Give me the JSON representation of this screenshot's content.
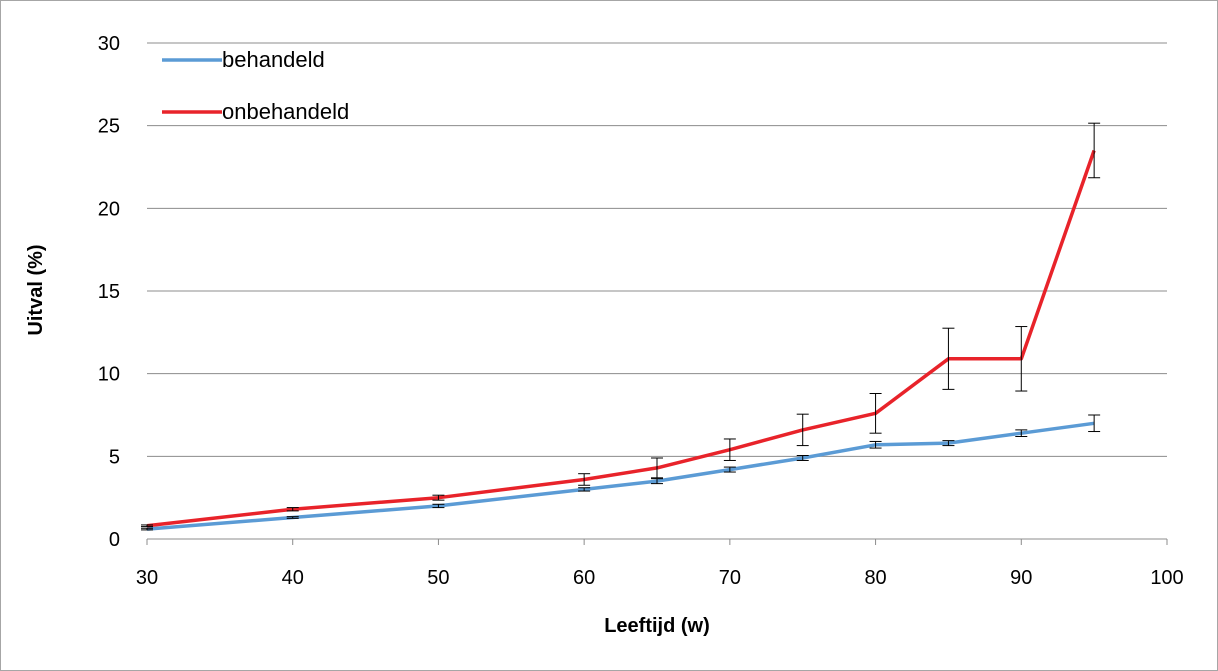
{
  "chart_data": {
    "type": "line",
    "xlabel": "Leeftijd (w)",
    "ylabel": "Uitval (%)",
    "xlim": [
      30,
      100
    ],
    "ylim": [
      0,
      30
    ],
    "x_ticks": [
      30,
      40,
      50,
      60,
      70,
      80,
      90,
      100
    ],
    "y_ticks": [
      0,
      5,
      10,
      15,
      20,
      25,
      30
    ],
    "grid": "horizontal",
    "legend_position": "top-left",
    "series": [
      {
        "name": "behandeld",
        "color": "#5b9bd5",
        "x": [
          30,
          40,
          50,
          60,
          65,
          70,
          75,
          80,
          85,
          90,
          95
        ],
        "y": [
          0.6,
          1.3,
          2.0,
          3.0,
          3.5,
          4.2,
          4.9,
          5.7,
          5.8,
          6.4,
          7.0
        ],
        "error": [
          0.05,
          0.05,
          0.1,
          0.1,
          0.15,
          0.15,
          0.15,
          0.2,
          0.15,
          0.2,
          0.5
        ]
      },
      {
        "name": "onbehandeld",
        "color": "#e8232a",
        "x": [
          30,
          40,
          50,
          60,
          65,
          70,
          75,
          80,
          85,
          90,
          95
        ],
        "y": [
          0.8,
          1.8,
          2.5,
          3.6,
          4.3,
          5.4,
          6.6,
          7.6,
          10.9,
          10.9,
          23.5
        ],
        "error": [
          0.05,
          0.1,
          0.15,
          0.35,
          0.6,
          0.65,
          0.95,
          1.2,
          1.85,
          1.95,
          1.65
        ]
      }
    ]
  }
}
